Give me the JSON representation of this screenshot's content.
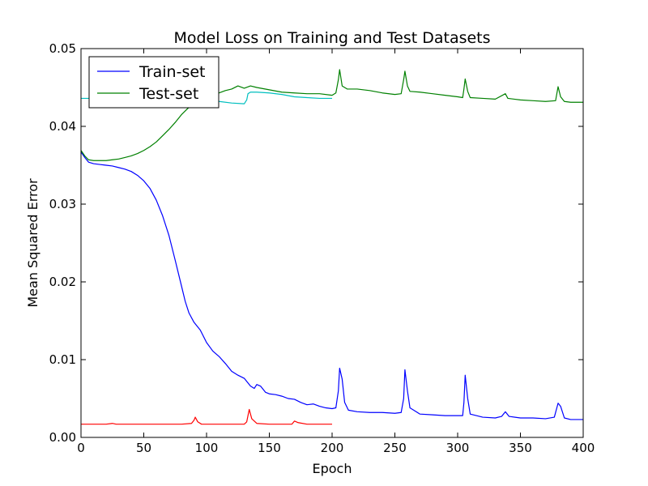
{
  "chart_data": {
    "type": "line",
    "title": "Model Loss on Training and Test Datasets",
    "xlabel": "Epoch",
    "ylabel": "Mean Squared Error",
    "xlim": [
      0,
      400
    ],
    "ylim": [
      0,
      0.05
    ],
    "x_ticks": [
      0,
      50,
      100,
      150,
      200,
      250,
      300,
      350,
      400
    ],
    "x_tick_labels": [
      "0",
      "50",
      "100",
      "150",
      "200",
      "250",
      "300",
      "350",
      "400"
    ],
    "y_ticks": [
      0,
      0.01,
      0.02,
      0.03,
      0.04,
      0.05
    ],
    "y_tick_labels": [
      "0.00",
      "0.01",
      "0.02",
      "0.03",
      "0.04",
      "0.05"
    ],
    "grid": false,
    "legend_position": "top-left",
    "series": [
      {
        "name": "Train-set",
        "color": "#0000ff",
        "in_legend": true,
        "points": [
          [
            0,
            0.0367
          ],
          [
            3,
            0.036
          ],
          [
            6,
            0.0354
          ],
          [
            10,
            0.0352
          ],
          [
            15,
            0.0351
          ],
          [
            20,
            0.035
          ],
          [
            25,
            0.0349
          ],
          [
            30,
            0.0347
          ],
          [
            35,
            0.0345
          ],
          [
            40,
            0.0342
          ],
          [
            45,
            0.0337
          ],
          [
            50,
            0.033
          ],
          [
            55,
            0.032
          ],
          [
            60,
            0.0305
          ],
          [
            65,
            0.0285
          ],
          [
            70,
            0.026
          ],
          [
            75,
            0.0228
          ],
          [
            80,
            0.0195
          ],
          [
            83,
            0.0175
          ],
          [
            86,
            0.016
          ],
          [
            90,
            0.0148
          ],
          [
            95,
            0.0138
          ],
          [
            100,
            0.0122
          ],
          [
            105,
            0.0111
          ],
          [
            110,
            0.0104
          ],
          [
            115,
            0.0095
          ],
          [
            120,
            0.0085
          ],
          [
            125,
            0.008
          ],
          [
            130,
            0.0076
          ],
          [
            135,
            0.0066
          ],
          [
            138,
            0.0063
          ],
          [
            140,
            0.0068
          ],
          [
            143,
            0.0066
          ],
          [
            147,
            0.0058
          ],
          [
            150,
            0.0056
          ],
          [
            155,
            0.0055
          ],
          [
            160,
            0.0053
          ],
          [
            165,
            0.005
          ],
          [
            170,
            0.0049
          ],
          [
            175,
            0.0045
          ],
          [
            180,
            0.0042
          ],
          [
            185,
            0.0043
          ],
          [
            190,
            0.004
          ],
          [
            195,
            0.0038
          ],
          [
            200,
            0.0037
          ],
          [
            203,
            0.0038
          ],
          [
            205,
            0.006
          ],
          [
            206,
            0.0089
          ],
          [
            208,
            0.0075
          ],
          [
            210,
            0.0045
          ],
          [
            213,
            0.0035
          ],
          [
            220,
            0.0033
          ],
          [
            230,
            0.0032
          ],
          [
            240,
            0.0032
          ],
          [
            250,
            0.0031
          ],
          [
            255,
            0.0032
          ],
          [
            257,
            0.005
          ],
          [
            258,
            0.0087
          ],
          [
            260,
            0.006
          ],
          [
            262,
            0.0038
          ],
          [
            270,
            0.003
          ],
          [
            280,
            0.0029
          ],
          [
            290,
            0.0028
          ],
          [
            300,
            0.0028
          ],
          [
            304,
            0.0028
          ],
          [
            305,
            0.0045
          ],
          [
            306,
            0.008
          ],
          [
            308,
            0.005
          ],
          [
            310,
            0.003
          ],
          [
            320,
            0.0026
          ],
          [
            330,
            0.0025
          ],
          [
            335,
            0.0027
          ],
          [
            338,
            0.0033
          ],
          [
            341,
            0.0027
          ],
          [
            350,
            0.0025
          ],
          [
            360,
            0.0025
          ],
          [
            370,
            0.0024
          ],
          [
            377,
            0.0026
          ],
          [
            380,
            0.0044
          ],
          [
            382,
            0.004
          ],
          [
            385,
            0.0025
          ],
          [
            390,
            0.0023
          ],
          [
            400,
            0.0023
          ]
        ]
      },
      {
        "name": "Test-set",
        "color": "#008000",
        "in_legend": true,
        "points": [
          [
            0,
            0.0369
          ],
          [
            3,
            0.0362
          ],
          [
            6,
            0.0357
          ],
          [
            10,
            0.0356
          ],
          [
            15,
            0.0356
          ],
          [
            20,
            0.0356
          ],
          [
            25,
            0.0357
          ],
          [
            30,
            0.0358
          ],
          [
            35,
            0.036
          ],
          [
            40,
            0.0362
          ],
          [
            45,
            0.0365
          ],
          [
            50,
            0.0369
          ],
          [
            55,
            0.0374
          ],
          [
            60,
            0.038
          ],
          [
            65,
            0.0388
          ],
          [
            70,
            0.0396
          ],
          [
            75,
            0.0405
          ],
          [
            80,
            0.0415
          ],
          [
            85,
            0.0423
          ],
          [
            90,
            0.0428
          ],
          [
            95,
            0.0432
          ],
          [
            100,
            0.0437
          ],
          [
            105,
            0.044
          ],
          [
            110,
            0.0443
          ],
          [
            115,
            0.0446
          ],
          [
            120,
            0.0448
          ],
          [
            125,
            0.0452
          ],
          [
            130,
            0.0449
          ],
          [
            135,
            0.0452
          ],
          [
            140,
            0.045
          ],
          [
            150,
            0.0447
          ],
          [
            160,
            0.0444
          ],
          [
            170,
            0.0443
          ],
          [
            180,
            0.0442
          ],
          [
            190,
            0.0442
          ],
          [
            200,
            0.044
          ],
          [
            203,
            0.0443
          ],
          [
            205,
            0.046
          ],
          [
            206,
            0.0473
          ],
          [
            208,
            0.0452
          ],
          [
            212,
            0.0448
          ],
          [
            220,
            0.0448
          ],
          [
            230,
            0.0446
          ],
          [
            240,
            0.0443
          ],
          [
            250,
            0.0441
          ],
          [
            255,
            0.0442
          ],
          [
            257,
            0.046
          ],
          [
            258,
            0.0471
          ],
          [
            260,
            0.0452
          ],
          [
            262,
            0.0445
          ],
          [
            270,
            0.0444
          ],
          [
            280,
            0.0442
          ],
          [
            290,
            0.044
          ],
          [
            300,
            0.0438
          ],
          [
            304,
            0.0437
          ],
          [
            305,
            0.0448
          ],
          [
            306,
            0.0461
          ],
          [
            308,
            0.0445
          ],
          [
            310,
            0.0437
          ],
          [
            320,
            0.0436
          ],
          [
            330,
            0.0435
          ],
          [
            338,
            0.0442
          ],
          [
            340,
            0.0436
          ],
          [
            350,
            0.0434
          ],
          [
            360,
            0.0433
          ],
          [
            370,
            0.0432
          ],
          [
            378,
            0.0433
          ],
          [
            380,
            0.0451
          ],
          [
            382,
            0.0438
          ],
          [
            385,
            0.0432
          ],
          [
            390,
            0.0431
          ],
          [
            400,
            0.0431
          ]
        ]
      },
      {
        "name": "",
        "color": "#00bfbf",
        "in_legend": false,
        "points": [
          [
            0,
            0.0436
          ],
          [
            10,
            0.0436
          ],
          [
            20,
            0.0436
          ],
          [
            30,
            0.0436
          ],
          [
            40,
            0.0436
          ],
          [
            50,
            0.0436
          ],
          [
            60,
            0.0436
          ],
          [
            70,
            0.0436
          ],
          [
            80,
            0.0435
          ],
          [
            90,
            0.0434
          ],
          [
            100,
            0.0433
          ],
          [
            110,
            0.0432
          ],
          [
            120,
            0.043
          ],
          [
            130,
            0.0429
          ],
          [
            132,
            0.0434
          ],
          [
            133,
            0.0442
          ],
          [
            135,
            0.0444
          ],
          [
            140,
            0.0444
          ],
          [
            150,
            0.0443
          ],
          [
            160,
            0.0441
          ],
          [
            170,
            0.0438
          ],
          [
            180,
            0.0437
          ],
          [
            190,
            0.0436
          ],
          [
            200,
            0.0436
          ]
        ]
      },
      {
        "name": "",
        "color": "#ff0000",
        "in_legend": false,
        "points": [
          [
            0,
            0.0017
          ],
          [
            10,
            0.0017
          ],
          [
            20,
            0.0017
          ],
          [
            25,
            0.0018
          ],
          [
            28,
            0.0017
          ],
          [
            40,
            0.0017
          ],
          [
            50,
            0.0017
          ],
          [
            60,
            0.0017
          ],
          [
            70,
            0.0017
          ],
          [
            80,
            0.0017
          ],
          [
            88,
            0.0018
          ],
          [
            90,
            0.0022
          ],
          [
            91,
            0.0026
          ],
          [
            93,
            0.002
          ],
          [
            96,
            0.0017
          ],
          [
            110,
            0.0017
          ],
          [
            120,
            0.0017
          ],
          [
            130,
            0.0017
          ],
          [
            132,
            0.002
          ],
          [
            134,
            0.0036
          ],
          [
            136,
            0.0024
          ],
          [
            140,
            0.0018
          ],
          [
            150,
            0.0017
          ],
          [
            160,
            0.0017
          ],
          [
            168,
            0.0017
          ],
          [
            170,
            0.0021
          ],
          [
            173,
            0.0019
          ],
          [
            180,
            0.0017
          ],
          [
            190,
            0.0017
          ],
          [
            200,
            0.0017
          ]
        ]
      }
    ]
  }
}
